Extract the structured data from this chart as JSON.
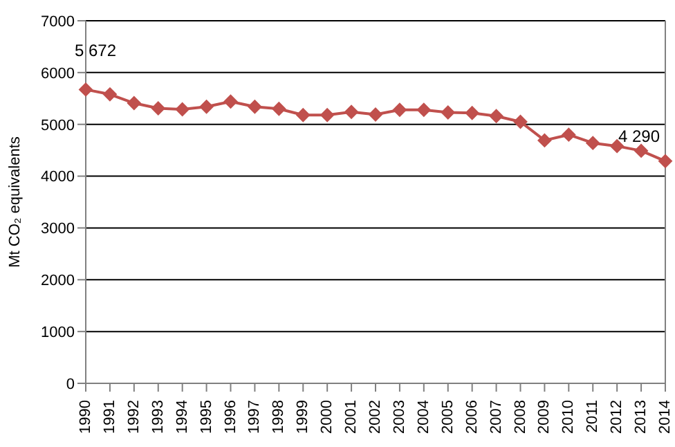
{
  "chart_data": {
    "type": "line",
    "ylabel": "Mt CO₂ equivalents",
    "categories": [
      "1990",
      "1991",
      "1992",
      "1993",
      "1994",
      "1995",
      "1996",
      "1997",
      "1998",
      "1999",
      "2000",
      "2001",
      "2002",
      "2003",
      "2004",
      "2005",
      "2006",
      "2007",
      "2008",
      "2009",
      "2010",
      "2011",
      "2012",
      "2013",
      "2014"
    ],
    "series": [
      {
        "color": "#c0504d",
        "values": [
          5672,
          5580,
          5410,
          5310,
          5290,
          5340,
          5440,
          5340,
          5300,
          5180,
          5180,
          5240,
          5190,
          5280,
          5280,
          5230,
          5220,
          5160,
          5050,
          4690,
          4800,
          4640,
          4580,
          4490,
          4290
        ],
        "value_labels": [
          "5 672",
          null,
          null,
          null,
          null,
          null,
          null,
          null,
          null,
          null,
          null,
          null,
          null,
          null,
          null,
          null,
          null,
          null,
          null,
          null,
          null,
          null,
          null,
          null,
          "4 290"
        ]
      }
    ],
    "ylim": [
      0,
      7000
    ],
    "yticks": [
      0,
      1000,
      2000,
      3000,
      4000,
      5000,
      6000,
      7000
    ],
    "grid": "y",
    "marker": "diamond"
  }
}
